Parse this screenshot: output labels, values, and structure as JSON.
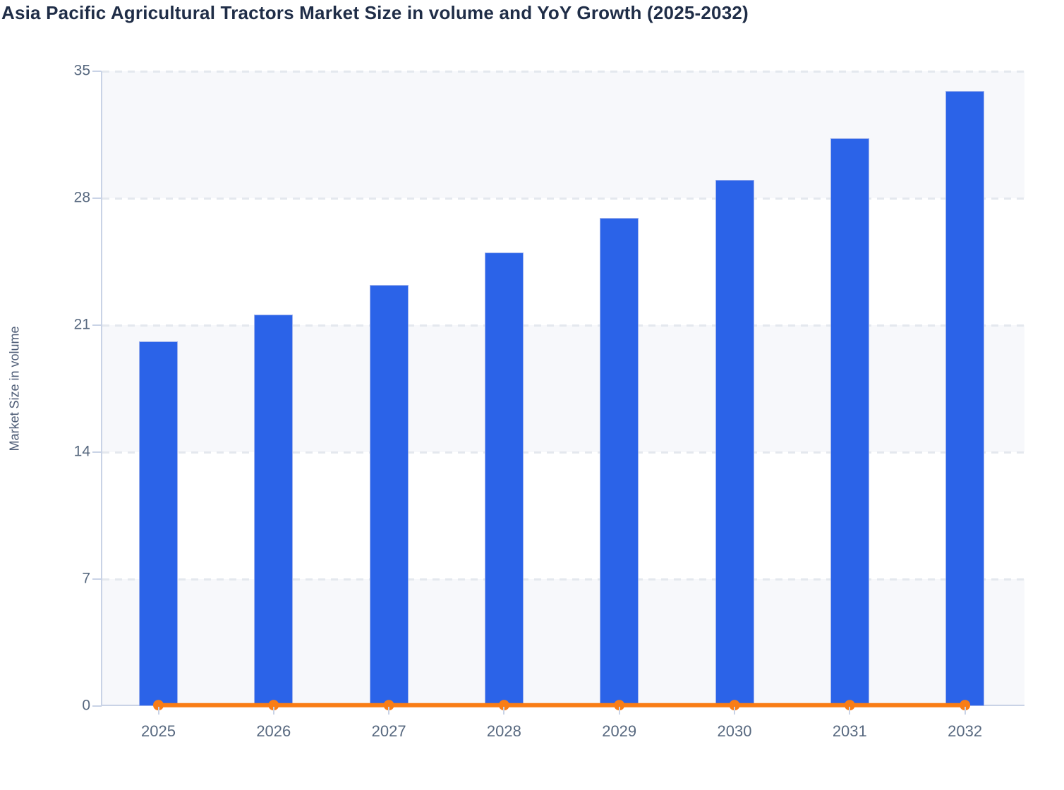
{
  "header": {
    "title": "Asia Pacific Agricultural Tractors Market Size in volume and YoY Growth (2025-2032)"
  },
  "colors": {
    "bar": "#2b63e8",
    "bar_border": "#9fb2ec",
    "line": "#f97d15",
    "band": "#f7f8fb",
    "grid": "#e4e8ee",
    "axis": "#c9d3e6",
    "tick_text": "#57687f",
    "title_text": "#1f2d47",
    "axis_title_text": "#4c5b75"
  },
  "chart_data": {
    "type": "bar",
    "title": "Asia Pacific Agricultural Tractors Market Size in volume and YoY Growth (2025-2032)",
    "categories": [
      "2025",
      "2026",
      "2027",
      "2028",
      "2029",
      "2030",
      "2031",
      "2032"
    ],
    "series": [
      {
        "name": "Market Size in volume",
        "type": "bar",
        "color": "#2b63e8",
        "values": [
          20.1,
          21.6,
          23.2,
          25.0,
          26.9,
          29.0,
          31.3,
          33.9
        ]
      },
      {
        "name": "YoY Growth",
        "type": "line",
        "color": "#f97d15",
        "values": [
          0.05,
          0.05,
          0.05,
          0.05,
          0.05,
          0.05,
          0.05,
          0.05
        ],
        "note": "flat line with round markers rendered at ~0 on the volume axis"
      }
    ],
    "xlabel": "",
    "ylabel": "Market Size in volume",
    "ylim": [
      0,
      35
    ],
    "yticks": [
      0,
      7,
      14,
      21,
      28,
      35
    ],
    "grid": "horizontal-dashed",
    "legend_position": "none",
    "plot_background": "alternating-row-bands"
  }
}
